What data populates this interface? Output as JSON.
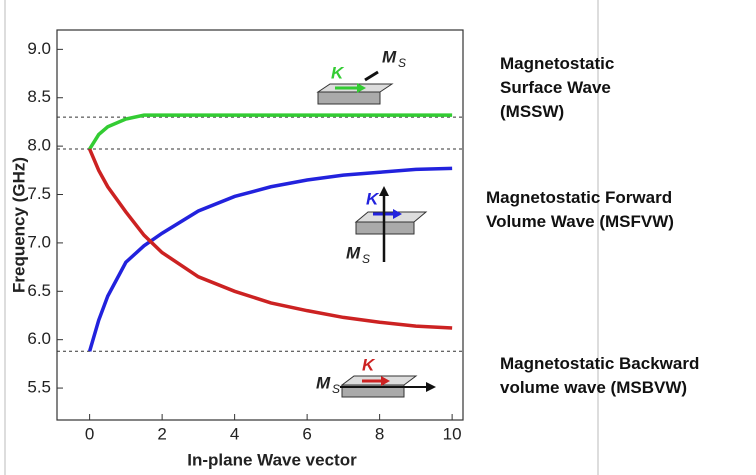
{
  "chart_data": {
    "type": "line",
    "x_label": "In-plane Wave vector",
    "y_label": "Frequency (GHz)",
    "x": [
      0,
      0.25,
      0.5,
      1,
      1.5,
      2,
      3,
      4,
      5,
      6,
      7,
      8,
      9,
      10
    ],
    "series": [
      {
        "name": "Magnetostatic Surface Wave (MSSW)",
        "color": "#33cc33",
        "values": [
          7.97,
          8.12,
          8.2,
          8.28,
          8.32,
          8.32,
          8.32,
          8.32,
          8.32,
          8.32,
          8.32,
          8.32,
          8.32,
          8.32
        ]
      },
      {
        "name": "Magnetostatic Forward Volume Wave (MSFVW)",
        "color": "#2222dd",
        "values": [
          5.88,
          6.2,
          6.45,
          6.8,
          6.97,
          7.1,
          7.33,
          7.48,
          7.58,
          7.65,
          7.7,
          7.73,
          7.76,
          7.77
        ]
      },
      {
        "name": "Magnetostatic  Backward volume wave (MSBVW)",
        "color": "#cc2222",
        "values": [
          7.97,
          7.75,
          7.58,
          7.32,
          7.08,
          6.9,
          6.65,
          6.5,
          6.38,
          6.3,
          6.23,
          6.18,
          6.14,
          6.12
        ]
      }
    ],
    "reference_lines": [
      8.3,
      7.97,
      5.88
    ],
    "inset_labels": {
      "wave_vector": "K",
      "magnetization": "M",
      "magnetization_sub": "S"
    },
    "xlim": [
      -0.9,
      10.3
    ],
    "ylim": [
      5.17,
      9.2
    ],
    "xticks": [
      0,
      2,
      4,
      6,
      8,
      10
    ],
    "yticks": [
      5.5,
      {
        "value": 6,
        "label": "6.0"
      },
      6.5,
      {
        "value": 7,
        "label": "7.0"
      },
      7.5,
      {
        "value": 8,
        "label": "8.0"
      },
      8.5,
      {
        "value": 9,
        "label": "9.0"
      }
    ]
  }
}
